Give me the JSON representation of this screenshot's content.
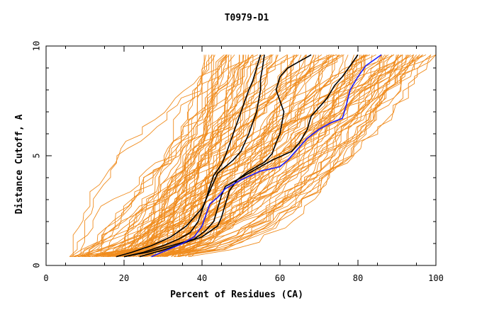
{
  "chart_data": {
    "type": "line",
    "title": "T0979-D1",
    "xlabel": "Percent of Residues (CA)",
    "ylabel": "Distance Cutoff, A",
    "xlim": [
      0,
      100
    ],
    "ylim": [
      0,
      10
    ],
    "x_ticks": [
      "0",
      "20",
      "40",
      "60",
      "80",
      "100"
    ],
    "y_ticks": [
      "0",
      "5",
      "10"
    ],
    "grid": false,
    "legend": "none",
    "colors": {
      "background_models": "#f08c1e",
      "reference": "#000000",
      "highlight": "#1a1aff"
    },
    "series": [
      {
        "color": "#000000",
        "points": [
          [
            18,
            0.4
          ],
          [
            22,
            0.6
          ],
          [
            27,
            0.9
          ],
          [
            32,
            1.3
          ],
          [
            36,
            1.8
          ],
          [
            38,
            2.2
          ],
          [
            40,
            2.6
          ],
          [
            41,
            3.0
          ],
          [
            42,
            3.4
          ],
          [
            43,
            3.8
          ],
          [
            44,
            4.2
          ],
          [
            46,
            4.5
          ],
          [
            48,
            4.8
          ],
          [
            50,
            5.2
          ],
          [
            51,
            5.6
          ],
          [
            52,
            6.0
          ],
          [
            53,
            6.5
          ],
          [
            54,
            7.0
          ],
          [
            54.5,
            7.5
          ],
          [
            55,
            8.0
          ],
          [
            55,
            8.5
          ],
          [
            55.5,
            9.0
          ],
          [
            56,
            9.6
          ]
        ]
      },
      {
        "color": "#000000",
        "points": [
          [
            20,
            0.4
          ],
          [
            25,
            0.6
          ],
          [
            30,
            0.9
          ],
          [
            34,
            1.2
          ],
          [
            37,
            1.5
          ],
          [
            39,
            2.0
          ],
          [
            40,
            2.5
          ],
          [
            41,
            3.0
          ],
          [
            42,
            3.6
          ],
          [
            43,
            4.1
          ],
          [
            45,
            4.6
          ],
          [
            46,
            5.0
          ],
          [
            47,
            5.5
          ],
          [
            48,
            6.0
          ],
          [
            49,
            6.5
          ],
          [
            50,
            7.0
          ],
          [
            51,
            7.5
          ],
          [
            52,
            8.0
          ],
          [
            53,
            8.4
          ],
          [
            54,
            9.0
          ],
          [
            55,
            9.6
          ]
        ]
      },
      {
        "color": "#000000",
        "points": [
          [
            24,
            0.4
          ],
          [
            30,
            0.7
          ],
          [
            35,
            1.0
          ],
          [
            40,
            1.3
          ],
          [
            44,
            1.8
          ],
          [
            45,
            2.2
          ],
          [
            46,
            2.8
          ],
          [
            47,
            3.4
          ],
          [
            49,
            3.9
          ],
          [
            52,
            4.3
          ],
          [
            56,
            4.7
          ],
          [
            58,
            5.1
          ],
          [
            59,
            5.6
          ],
          [
            60,
            6.0
          ],
          [
            60.5,
            6.5
          ],
          [
            61,
            7.0
          ],
          [
            60,
            7.5
          ],
          [
            59,
            8.0
          ],
          [
            60,
            8.6
          ],
          [
            62,
            9.0
          ],
          [
            65,
            9.3
          ],
          [
            68,
            9.6
          ]
        ]
      },
      {
        "color": "#000000",
        "points": [
          [
            20,
            0.4
          ],
          [
            26,
            0.6
          ],
          [
            32,
            0.9
          ],
          [
            38,
            1.2
          ],
          [
            41,
            1.6
          ],
          [
            43,
            2.0
          ],
          [
            44,
            2.6
          ],
          [
            45,
            3.2
          ],
          [
            46,
            3.6
          ],
          [
            50,
            4.0
          ],
          [
            54,
            4.4
          ],
          [
            58,
            4.8
          ],
          [
            63,
            5.2
          ],
          [
            65,
            5.6
          ],
          [
            67,
            6.2
          ],
          [
            68,
            6.8
          ],
          [
            70,
            7.2
          ],
          [
            72,
            7.6
          ],
          [
            74,
            8.2
          ],
          [
            76,
            8.6
          ],
          [
            78,
            9.1
          ],
          [
            80,
            9.6
          ]
        ]
      },
      {
        "color": "#1a1aff",
        "points": [
          [
            27,
            0.4
          ],
          [
            31,
            0.7
          ],
          [
            35,
            1.0
          ],
          [
            38,
            1.3
          ],
          [
            40,
            1.8
          ],
          [
            41,
            2.3
          ],
          [
            42,
            2.8
          ],
          [
            44,
            3.1
          ],
          [
            46,
            3.5
          ],
          [
            50,
            3.9
          ],
          [
            55,
            4.3
          ],
          [
            60,
            4.5
          ],
          [
            62,
            4.8
          ],
          [
            64,
            5.2
          ],
          [
            67,
            5.8
          ],
          [
            70,
            6.2
          ],
          [
            73,
            6.5
          ],
          [
            76,
            6.7
          ],
          [
            77,
            7.3
          ],
          [
            78,
            8.0
          ],
          [
            80,
            8.6
          ],
          [
            82,
            9.1
          ],
          [
            86,
            9.6
          ]
        ]
      }
    ]
  }
}
